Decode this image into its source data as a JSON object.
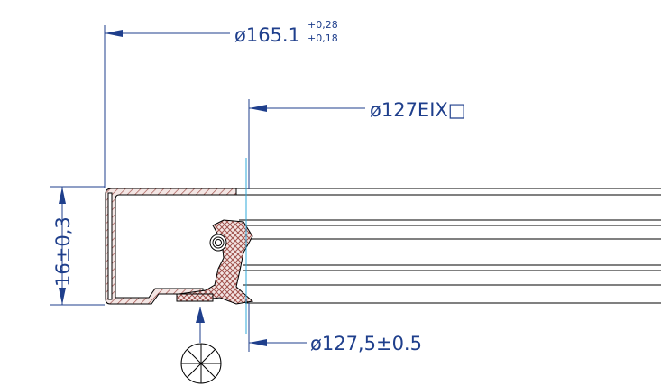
{
  "dimensions": {
    "outer_diameter": {
      "value": "ø165.1",
      "tol_upper": "+0,28",
      "tol_lower": "+0,18"
    },
    "inner_diameter": {
      "value": "ø127EIX□"
    },
    "lip_diameter": {
      "value": "ø127,5±0.5"
    },
    "height": {
      "value": "16±0,3"
    }
  },
  "colors": {
    "dimension": "#1f3f8c",
    "centerline": "#2fa8d8",
    "section_hatch": "#a0524d",
    "outline": "#000000"
  },
  "symbols": {
    "direction_marker": "circle-cross-icon"
  }
}
